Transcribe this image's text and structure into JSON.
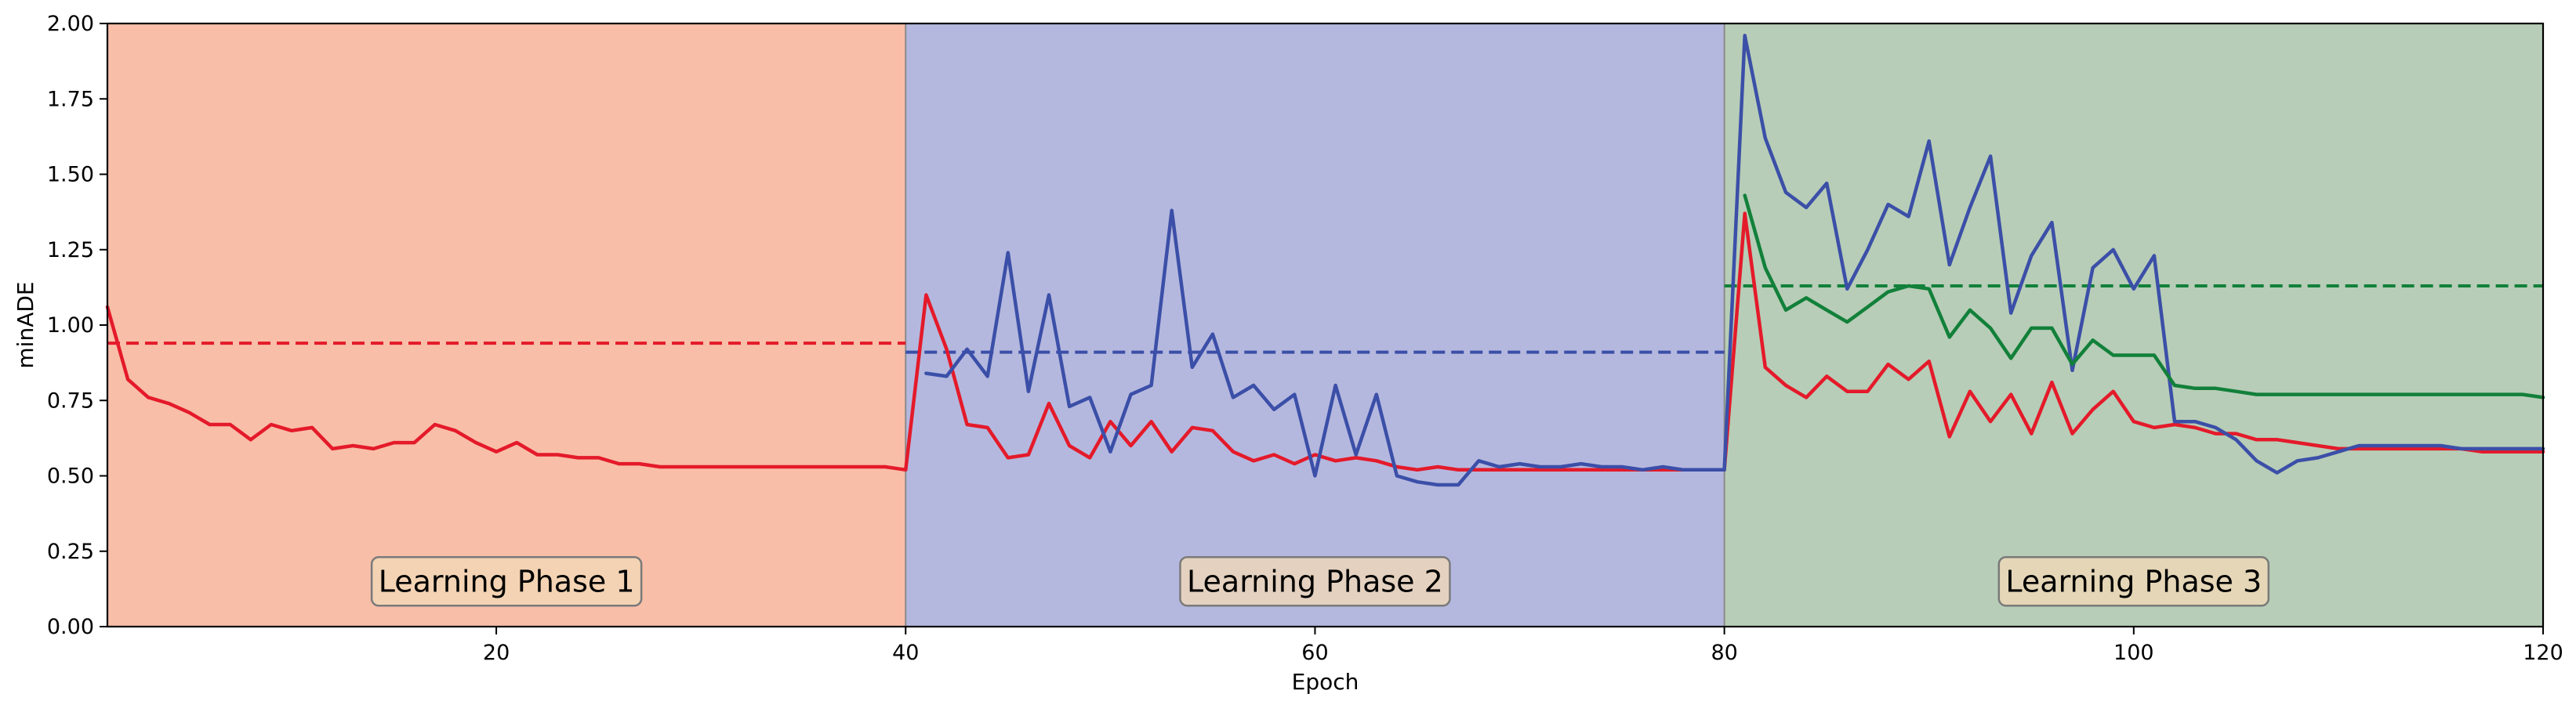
{
  "chart_data": {
    "type": "line",
    "title": "",
    "xlabel": "Epoch",
    "ylabel": "minADE",
    "xlim": [
      1,
      120
    ],
    "ylim": [
      0.0,
      2.0
    ],
    "x_ticks": [
      20,
      40,
      60,
      80,
      100,
      120
    ],
    "x_tick_labels": [
      "20",
      "40",
      "60",
      "80",
      "100",
      "120"
    ],
    "y_ticks": [
      0.0,
      0.25,
      0.5,
      0.75,
      1.0,
      1.25,
      1.5,
      1.75,
      2.0
    ],
    "y_tick_labels": [
      "0.00",
      "0.25",
      "0.50",
      "0.75",
      "1.00",
      "1.25",
      "1.50",
      "1.75",
      "2.00"
    ],
    "grid": false,
    "phases": [
      {
        "label": "Learning Phase 1",
        "x_start": 1,
        "x_end": 40,
        "color": "#f8bea8"
      },
      {
        "label": "Learning Phase 2",
        "x_start": 40,
        "x_end": 80,
        "color": "#b5b8de"
      },
      {
        "label": "Learning Phase 3",
        "x_start": 80,
        "x_end": 120,
        "color": "#b7cdb7"
      }
    ],
    "series": [
      {
        "color": "#e41a2a",
        "x": [
          1,
          2,
          3,
          4,
          5,
          6,
          7,
          8,
          9,
          10,
          11,
          12,
          13,
          14,
          15,
          16,
          17,
          18,
          19,
          20,
          21,
          22,
          23,
          24,
          25,
          26,
          27,
          28,
          29,
          30,
          31,
          32,
          33,
          34,
          35,
          36,
          37,
          38,
          39,
          40,
          41,
          42,
          43,
          44,
          45,
          46,
          47,
          48,
          49,
          50,
          51,
          52,
          53,
          54,
          55,
          56,
          57,
          58,
          59,
          60,
          61,
          62,
          63,
          64,
          65,
          66,
          67,
          68,
          69,
          70,
          71,
          72,
          73,
          74,
          75,
          76,
          77,
          78,
          79,
          80,
          81,
          82,
          83,
          84,
          85,
          86,
          87,
          88,
          89,
          90,
          91,
          92,
          93,
          94,
          95,
          96,
          97,
          98,
          99,
          100,
          101,
          102,
          103,
          104,
          105,
          106,
          107,
          108,
          109,
          110,
          111,
          112,
          113,
          114,
          115,
          116,
          117,
          118,
          119,
          120
        ],
        "values": [
          1.06,
          0.82,
          0.76,
          0.74,
          0.71,
          0.67,
          0.67,
          0.62,
          0.67,
          0.65,
          0.66,
          0.59,
          0.6,
          0.59,
          0.61,
          0.61,
          0.67,
          0.65,
          0.61,
          0.58,
          0.61,
          0.57,
          0.57,
          0.56,
          0.56,
          0.54,
          0.54,
          0.53,
          0.53,
          0.53,
          0.53,
          0.53,
          0.53,
          0.53,
          0.53,
          0.53,
          0.53,
          0.53,
          0.53,
          0.52,
          1.1,
          0.92,
          0.67,
          0.66,
          0.56,
          0.57,
          0.74,
          0.6,
          0.56,
          0.68,
          0.6,
          0.68,
          0.58,
          0.66,
          0.65,
          0.58,
          0.55,
          0.57,
          0.54,
          0.57,
          0.55,
          0.56,
          0.55,
          0.53,
          0.52,
          0.53,
          0.52,
          0.52,
          0.52,
          0.52,
          0.52,
          0.52,
          0.52,
          0.52,
          0.52,
          0.52,
          0.52,
          0.52,
          0.52,
          0.52,
          1.37,
          0.86,
          0.8,
          0.76,
          0.83,
          0.78,
          0.78,
          0.87,
          0.82,
          0.88,
          0.63,
          0.78,
          0.68,
          0.77,
          0.64,
          0.81,
          0.64,
          0.72,
          0.78,
          0.68,
          0.66,
          0.67,
          0.66,
          0.64,
          0.64,
          0.62,
          0.62,
          0.61,
          0.6,
          0.59,
          0.59,
          0.59,
          0.59,
          0.59,
          0.59,
          0.59,
          0.58,
          0.58,
          0.58,
          0.58
        ]
      },
      {
        "color": "#3b4fa8",
        "x": [
          41,
          42,
          43,
          44,
          45,
          46,
          47,
          48,
          49,
          50,
          51,
          52,
          53,
          54,
          55,
          56,
          57,
          58,
          59,
          60,
          61,
          62,
          63,
          64,
          65,
          66,
          67,
          68,
          69,
          70,
          71,
          72,
          73,
          74,
          75,
          76,
          77,
          78,
          79,
          80,
          81,
          82,
          83,
          84,
          85,
          86,
          87,
          88,
          89,
          90,
          91,
          92,
          93,
          94,
          95,
          96,
          97,
          98,
          99,
          100,
          101,
          102,
          103,
          104,
          105,
          106,
          107,
          108,
          109,
          110,
          111,
          112,
          113,
          114,
          115,
          116,
          117,
          118,
          119,
          120
        ],
        "values": [
          0.84,
          0.83,
          0.92,
          0.83,
          1.24,
          0.78,
          1.1,
          0.73,
          0.76,
          0.58,
          0.77,
          0.8,
          1.38,
          0.86,
          0.97,
          0.76,
          0.8,
          0.72,
          0.77,
          0.5,
          0.8,
          0.57,
          0.77,
          0.5,
          0.48,
          0.47,
          0.47,
          0.55,
          0.53,
          0.54,
          0.53,
          0.53,
          0.54,
          0.53,
          0.53,
          0.52,
          0.53,
          0.52,
          0.52,
          0.52,
          1.96,
          1.62,
          1.44,
          1.39,
          1.47,
          1.12,
          1.25,
          1.4,
          1.36,
          1.61,
          1.2,
          1.39,
          1.56,
          1.04,
          1.23,
          1.34,
          0.85,
          1.19,
          1.25,
          1.12,
          1.23,
          0.68,
          0.68,
          0.66,
          0.62,
          0.55,
          0.51,
          0.55,
          0.56,
          0.58,
          0.6,
          0.6,
          0.6,
          0.6,
          0.6,
          0.59,
          0.59,
          0.59,
          0.59,
          0.59
        ]
      },
      {
        "color": "#12803a",
        "x": [
          81,
          82,
          83,
          84,
          85,
          86,
          87,
          88,
          89,
          90,
          91,
          92,
          93,
          94,
          95,
          96,
          97,
          98,
          99,
          100,
          101,
          102,
          103,
          104,
          105,
          106,
          107,
          108,
          109,
          110,
          111,
          112,
          113,
          114,
          115,
          116,
          117,
          118,
          119,
          120
        ],
        "values": [
          1.43,
          1.19,
          1.05,
          1.09,
          1.05,
          1.01,
          1.06,
          1.11,
          1.13,
          1.12,
          0.96,
          1.05,
          0.99,
          0.89,
          0.99,
          0.99,
          0.87,
          0.95,
          0.9,
          0.9,
          0.9,
          0.8,
          0.79,
          0.79,
          0.78,
          0.77,
          0.77,
          0.77,
          0.77,
          0.77,
          0.77,
          0.77,
          0.77,
          0.77,
          0.77,
          0.77,
          0.77,
          0.77,
          0.77,
          0.76
        ]
      }
    ],
    "reference_lines": [
      {
        "color": "#e41a2a",
        "y": 0.94,
        "x_start": 1,
        "x_end": 40
      },
      {
        "color": "#3b4fa8",
        "y": 0.91,
        "x_start": 40,
        "x_end": 80
      },
      {
        "color": "#12803a",
        "y": 1.13,
        "x_start": 80,
        "x_end": 120
      }
    ]
  }
}
